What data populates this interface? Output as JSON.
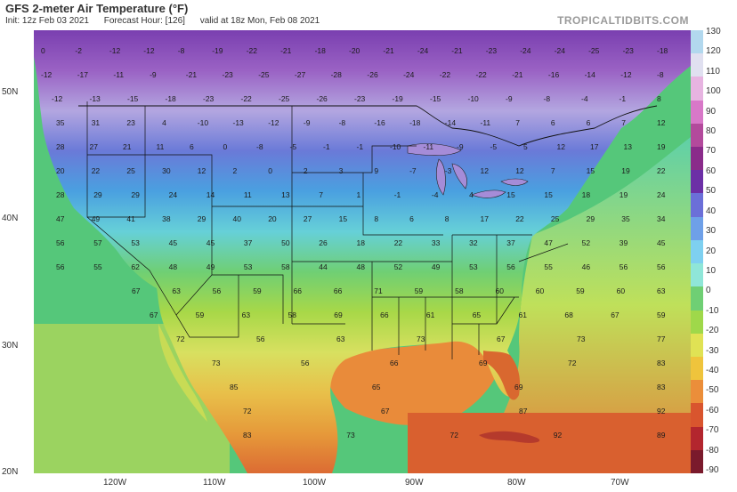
{
  "header": {
    "title": "GFS 2-meter Air Temperature (°F)",
    "init": "Init: 12z Feb 03 2021",
    "forecast_hour": "Forecast Hour: [126]",
    "valid": "valid at 18z Mon, Feb 08 2021",
    "brand": "TROPICALTIDBITS.COM"
  },
  "axes": {
    "lat_labels": [
      "50N",
      "40N",
      "30N",
      "20N"
    ],
    "lon_labels": [
      "120W",
      "110W",
      "100W",
      "90W",
      "80W",
      "70W"
    ]
  },
  "colorbar": {
    "ticks": [
      "130",
      "120",
      "110",
      "100",
      "90",
      "80",
      "70",
      "60",
      "50",
      "40",
      "30",
      "20",
      "10",
      "0",
      "-10",
      "-20",
      "-30",
      "-40",
      "-50",
      "-60",
      "-70",
      "-80",
      "-90"
    ],
    "colors": [
      "#b2d8ee",
      "#e0e0f0",
      "#e7b4e1",
      "#d878c8",
      "#b34a9c",
      "#8a2b8a",
      "#6c2fa6",
      "#6b6fd8",
      "#6ea0e8",
      "#7ed0f0",
      "#8fe6d8",
      "#6fcf74",
      "#9fd84a",
      "#e0e254",
      "#efc43c",
      "#eb8e3a",
      "#d9552e",
      "#b3262e",
      "#7a1a2c"
    ]
  },
  "map": {
    "land_gradient": [
      "#7a3fb0",
      "#9a62c4",
      "#b3a6e0",
      "#6a7ad8",
      "#4aa0e0",
      "#66d0d8",
      "#6fcf74",
      "#a8d848",
      "#d8e060",
      "#e8c04a",
      "#e69a3a",
      "#dc6b33"
    ],
    "ocean_colors": {
      "pacific": "#55c77a",
      "gulf": "#e98b3a",
      "atlantic_south": "#e3803a",
      "atlantic_north": "#5fd0a8"
    },
    "values": [
      [
        "0",
        "-2",
        "-12",
        "-12",
        "-8",
        "-19",
        "-22",
        "-21",
        "-18",
        "-20",
        "-21",
        "-24",
        "-21",
        "-23",
        "-24",
        "-24",
        "-25",
        "-23",
        "-18"
      ],
      [
        "-12",
        "-17",
        "-11",
        "-9",
        "-21",
        "-23",
        "-25",
        "-27",
        "-28",
        "-26",
        "-24",
        "-22",
        "-22",
        "-21",
        "-16",
        "-14",
        "-12",
        "-8"
      ],
      [
        "-12",
        "-13",
        "-15",
        "-18",
        "-23",
        "-22",
        "-25",
        "-26",
        "-23",
        "-19",
        "-15",
        "-10",
        "-9",
        "-8",
        "-4",
        "-1",
        "8"
      ],
      [
        "35",
        "31",
        "23",
        "4",
        "-10",
        "-13",
        "-12",
        "-9",
        "-8",
        "-16",
        "-18",
        "-14",
        "-11",
        "7",
        "6",
        "6",
        "7",
        "12"
      ],
      [
        "28",
        "27",
        "21",
        "11",
        "6",
        "0",
        "-8",
        "-5",
        "-1",
        "-1",
        "-10",
        "-11",
        "-9",
        "-5",
        "5",
        "12",
        "17",
        "13",
        "19"
      ],
      [
        "20",
        "22",
        "25",
        "30",
        "12",
        "2",
        "0",
        "2",
        "3",
        "9",
        "-7",
        "-3",
        "12",
        "12",
        "7",
        "15",
        "19",
        "22"
      ],
      [
        "28",
        "29",
        "29",
        "24",
        "14",
        "11",
        "13",
        "7",
        "1",
        "-1",
        "-4",
        "4",
        "15",
        "15",
        "18",
        "19",
        "24"
      ],
      [
        "47",
        "49",
        "41",
        "38",
        "29",
        "40",
        "20",
        "27",
        "15",
        "8",
        "6",
        "8",
        "17",
        "22",
        "25",
        "29",
        "35",
        "34"
      ],
      [
        "56",
        "57",
        "53",
        "45",
        "45",
        "37",
        "50",
        "26",
        "18",
        "22",
        "33",
        "32",
        "37",
        "47",
        "52",
        "39",
        "45"
      ],
      [
        "56",
        "55",
        "62",
        "48",
        "49",
        "53",
        "58",
        "44",
        "48",
        "52",
        "49",
        "53",
        "56",
        "55",
        "46",
        "56",
        "56"
      ],
      [
        "67",
        "63",
        "56",
        "59",
        "66",
        "66",
        "71",
        "59",
        "58",
        "60",
        "60",
        "59",
        "60",
        "63"
      ],
      [
        "67",
        "59",
        "63",
        "58",
        "69",
        "66",
        "61",
        "65",
        "61",
        "68",
        "67",
        "59"
      ],
      [
        "72",
        "56",
        "63",
        "73",
        "67",
        "73",
        "77"
      ],
      [
        "73",
        "56",
        "66",
        "69",
        "72",
        "83"
      ],
      [
        "85",
        "65",
        "69",
        "83"
      ],
      [
        "72",
        "67",
        "87",
        "92"
      ],
      [
        "83",
        "73",
        "72",
        "92",
        "89"
      ]
    ]
  }
}
